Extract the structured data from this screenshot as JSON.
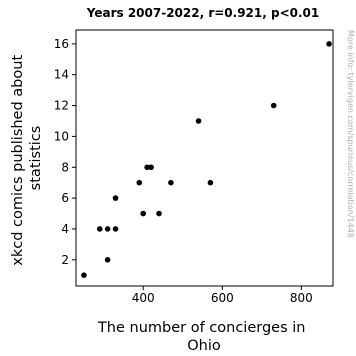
{
  "chart_data": {
    "type": "scatter",
    "title": "Years 2007-2022, r=0.921, p<0.01",
    "xlabel": [
      "The number of concierges in",
      "Ohio"
    ],
    "ylabel": [
      "xkcd comics published about",
      "statistics"
    ],
    "xlim": [
      230,
      880
    ],
    "ylim": [
      0.3,
      16.9
    ],
    "xticks": [
      400,
      600,
      800
    ],
    "yticks": [
      2,
      4,
      6,
      8,
      10,
      12,
      14,
      16
    ],
    "grid": false,
    "legend": "none",
    "marker_color": "#000000",
    "points": [
      {
        "x": 250,
        "y": 1
      },
      {
        "x": 290,
        "y": 4
      },
      {
        "x": 310,
        "y": 4
      },
      {
        "x": 310,
        "y": 2
      },
      {
        "x": 330,
        "y": 4
      },
      {
        "x": 330,
        "y": 6
      },
      {
        "x": 390,
        "y": 7
      },
      {
        "x": 400,
        "y": 5
      },
      {
        "x": 410,
        "y": 8
      },
      {
        "x": 420,
        "y": 8
      },
      {
        "x": 440,
        "y": 5
      },
      {
        "x": 470,
        "y": 7
      },
      {
        "x": 540,
        "y": 11
      },
      {
        "x": 570,
        "y": 7
      },
      {
        "x": 730,
        "y": 12
      },
      {
        "x": 870,
        "y": 16
      }
    ]
  },
  "watermark": "More info: tylervigen.com/spurious/correlation/1448"
}
